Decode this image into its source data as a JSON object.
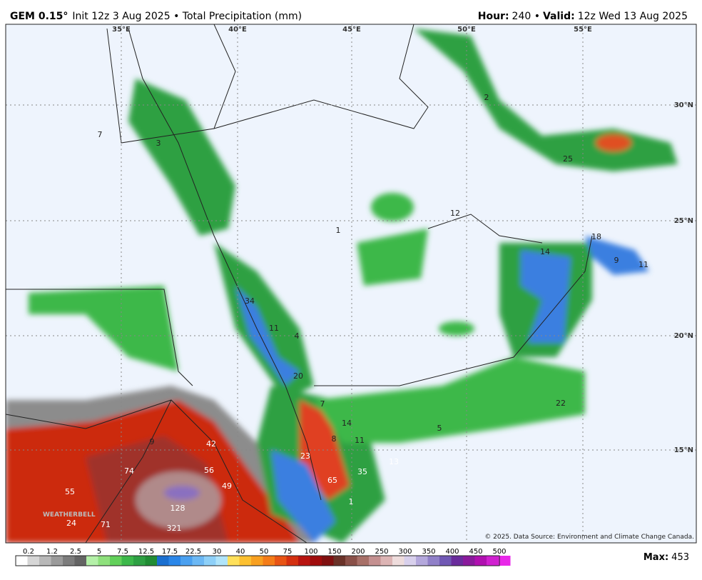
{
  "header": {
    "model": "GEM 0.15°",
    "description": "Init 12z 3 Aug 2025 • Total Precipitation (mm)",
    "hour_label": "Hour:",
    "hour_value": "240 •",
    "valid_label": "Valid:",
    "valid_value": "12z Wed 13 Aug 2025"
  },
  "map": {
    "lon_labels": [
      "35°E",
      "40°E",
      "45°E",
      "50°E",
      "55°E"
    ],
    "lat_labels": [
      "30°N",
      "25°N",
      "20°N",
      "15°N"
    ],
    "point_labels": [
      "2",
      "7",
      "3",
      "25",
      "12",
      "1",
      "18",
      "14",
      "9",
      "11",
      "34",
      "11",
      "4",
      "20",
      "7",
      "14",
      "8",
      "11",
      "5",
      "22",
      "9",
      "42",
      "23",
      "35",
      "13",
      "74",
      "56",
      "65",
      "55",
      "49",
      "128",
      "24",
      "71",
      "321",
      "1"
    ],
    "logo": "WEATHERBELL",
    "credit": "© 2025. Data Source: Environment and Climate Change Canada."
  },
  "colorbar": {
    "labels": [
      "0.2",
      "1.2",
      "2.5",
      "5",
      "7.5",
      "12.5",
      "17.5",
      "22.5",
      "30",
      "40",
      "50",
      "75",
      "100",
      "150",
      "200",
      "250",
      "300",
      "350",
      "400",
      "450",
      "500"
    ],
    "max_label": "Max:",
    "max_value": "453"
  }
}
